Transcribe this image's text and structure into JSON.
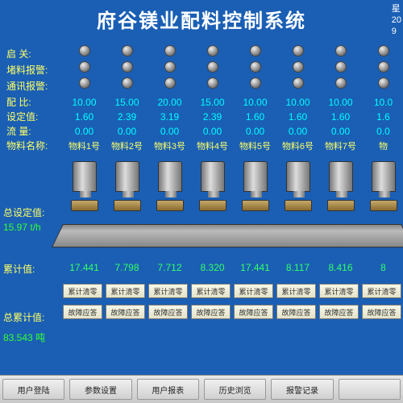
{
  "title": "府谷镁业配料控制系统",
  "clock": {
    "l1": "星",
    "l2": "20",
    "l3": "9"
  },
  "row_labels": {
    "start": "启  关:",
    "block": "堵料报警:",
    "comm": "通讯报警:",
    "ratio": "配  比:",
    "setv": "设定值:",
    "flow": "流  量:",
    "matname": "物料名称:"
  },
  "columns": [
    {
      "ratio": "10.00",
      "set": "1.60",
      "flow": "0.00",
      "name": "物料1号",
      "cum": "17.441"
    },
    {
      "ratio": "15.00",
      "set": "2.39",
      "flow": "0.00",
      "name": "物料2号",
      "cum": "7.798"
    },
    {
      "ratio": "20.00",
      "set": "3.19",
      "flow": "0.00",
      "name": "物料3号",
      "cum": "7.712"
    },
    {
      "ratio": "15.00",
      "set": "2.39",
      "flow": "0.00",
      "name": "物料4号",
      "cum": "8.320"
    },
    {
      "ratio": "10.00",
      "set": "1.60",
      "flow": "0.00",
      "name": "物料5号",
      "cum": "17.441"
    },
    {
      "ratio": "10.00",
      "set": "1.60",
      "flow": "0.00",
      "name": "物料6号",
      "cum": "8.117"
    },
    {
      "ratio": "10.00",
      "set": "1.60",
      "flow": "0.00",
      "name": "物料7号",
      "cum": "8.416"
    },
    {
      "ratio": "10.0",
      "set": "1.6",
      "flow": "0.0",
      "name": "物",
      "cum": "8"
    }
  ],
  "left": {
    "total_set_label": "总设定值:",
    "total_set_value": "15.97  t/h",
    "cum_label": "累计值:",
    "total_cum_label": "总累计值:",
    "total_cum_value": "83.543 吨"
  },
  "small_buttons": {
    "zero": "累计清零",
    "fault": "故障应答"
  },
  "bottom": [
    "用户登陆",
    "参数设置",
    "用户报表",
    "历史浏览",
    "报警记录",
    ""
  ]
}
